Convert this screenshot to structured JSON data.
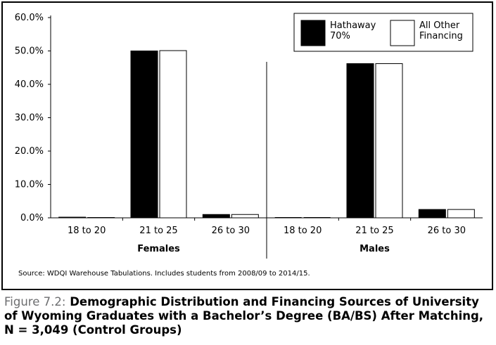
{
  "chart_data": {
    "type": "bar",
    "groups": [
      {
        "name": "Females",
        "categories": [
          "18 to 20",
          "21 to 25",
          "26 to 30"
        ]
      },
      {
        "name": "Males",
        "categories": [
          "18 to 20",
          "21 to 25",
          "26 to 30"
        ]
      }
    ],
    "series": [
      {
        "name": "Hathaway\n70%",
        "color": "#000000",
        "values": [
          0.2,
          50.0,
          1.0,
          0.0,
          46.2,
          2.5
        ]
      },
      {
        "name": "All Other\nFinancing",
        "color": "#ffffff",
        "values": [
          0.1,
          50.1,
          1.0,
          0.0,
          46.2,
          2.5
        ]
      }
    ],
    "yticks": [
      "0.0%",
      "10.0%",
      "20.0%",
      "30.0%",
      "40.0%",
      "50.0%",
      "60.0%"
    ],
    "ylim": [
      0,
      60
    ],
    "legend_position": "top-right",
    "source": "Source: WDQI Warehouse Tabulations. Includes students from 2008/09 to 2014/15."
  },
  "caption": {
    "figure_number": "Figure 7.2:",
    "text": "Demographic Distribution and Financing Sources of University of Wyoming Graduates with a Bachelor’s Degree (BA/BS) After Matching, N = 3,049 (Control Groups)"
  }
}
